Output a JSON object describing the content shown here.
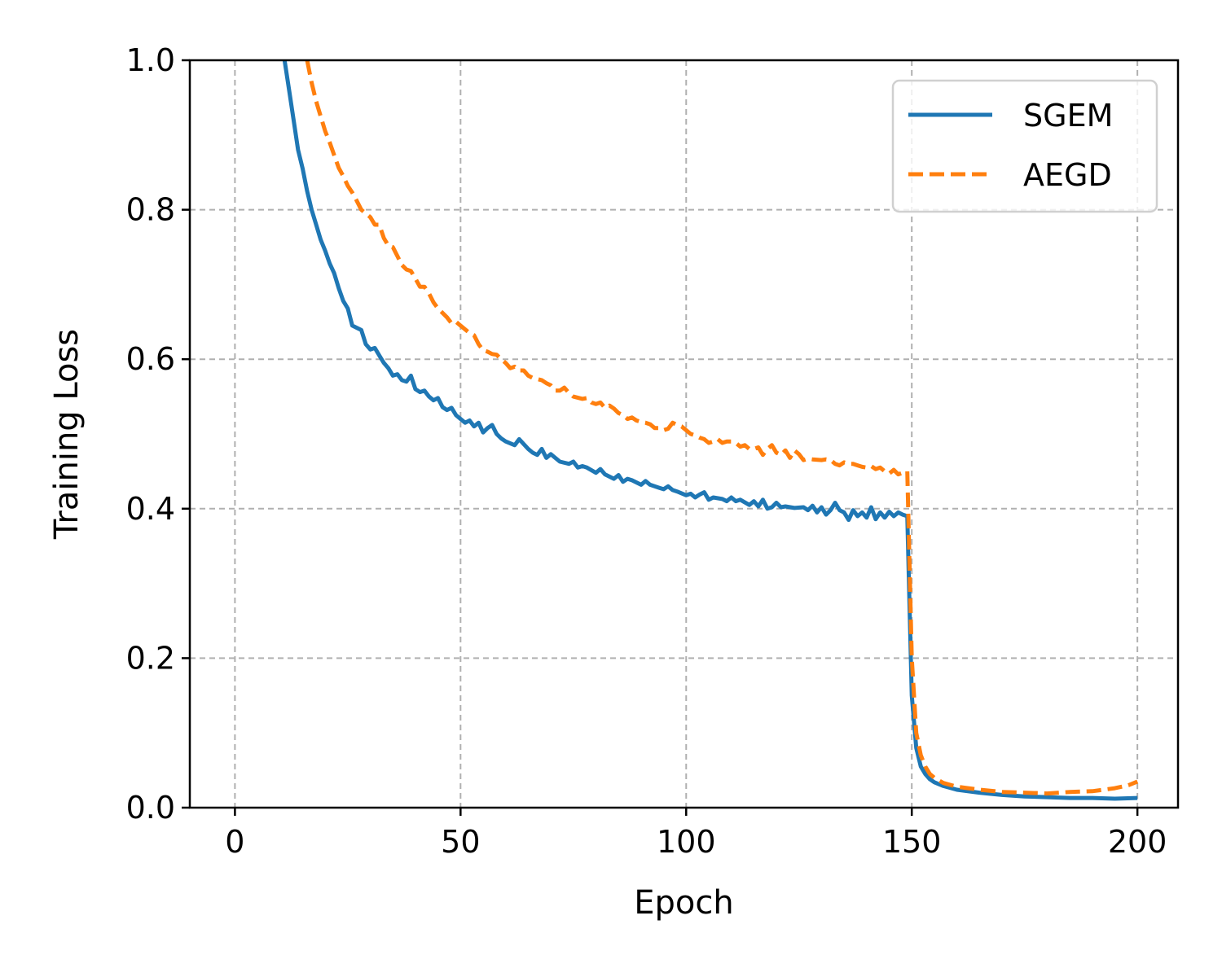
{
  "chart_data": {
    "type": "line",
    "xlabel": "Epoch",
    "ylabel": "Training Loss",
    "xlim": [
      -10,
      209
    ],
    "ylim": [
      0.0,
      1.0
    ],
    "xticks": [
      0,
      50,
      100,
      150,
      200
    ],
    "xtick_labels": [
      "0",
      "50",
      "100",
      "150",
      "200"
    ],
    "yticks": [
      0.0,
      0.2,
      0.4,
      0.6,
      0.8,
      1.0
    ],
    "ytick_labels": [
      "0.0",
      "0.2",
      "0.4",
      "0.6",
      "0.8",
      "1.0"
    ],
    "grid": true,
    "legend_position": "top-right",
    "series": [
      {
        "name": "SGEM",
        "color": "#1f77b4",
        "dash": "solid",
        "points": [
          [
            11,
            1.0
          ],
          [
            12,
            0.96
          ],
          [
            13,
            0.92
          ],
          [
            14,
            0.88
          ],
          [
            15,
            0.855
          ],
          [
            16,
            0.825
          ],
          [
            17,
            0.8
          ],
          [
            18,
            0.78
          ],
          [
            19,
            0.76
          ],
          [
            20,
            0.745
          ],
          [
            21,
            0.728
          ],
          [
            22,
            0.715
          ],
          [
            23,
            0.695
          ],
          [
            24,
            0.678
          ],
          [
            25,
            0.668
          ],
          [
            26,
            0.645
          ],
          [
            27,
            0.642
          ],
          [
            28,
            0.639
          ],
          [
            29,
            0.62
          ],
          [
            30,
            0.613
          ],
          [
            31,
            0.615
          ],
          [
            32,
            0.605
          ],
          [
            33,
            0.595
          ],
          [
            34,
            0.588
          ],
          [
            35,
            0.578
          ],
          [
            36,
            0.58
          ],
          [
            37,
            0.572
          ],
          [
            38,
            0.57
          ],
          [
            39,
            0.578
          ],
          [
            40,
            0.56
          ],
          [
            41,
            0.556
          ],
          [
            42,
            0.558
          ],
          [
            43,
            0.55
          ],
          [
            44,
            0.545
          ],
          [
            45,
            0.548
          ],
          [
            46,
            0.536
          ],
          [
            47,
            0.532
          ],
          [
            48,
            0.535
          ],
          [
            49,
            0.525
          ],
          [
            50,
            0.52
          ],
          [
            51,
            0.515
          ],
          [
            52,
            0.518
          ],
          [
            53,
            0.51
          ],
          [
            54,
            0.515
          ],
          [
            55,
            0.502
          ],
          [
            56,
            0.508
          ],
          [
            57,
            0.512
          ],
          [
            58,
            0.5
          ],
          [
            59,
            0.494
          ],
          [
            60,
            0.49
          ],
          [
            62,
            0.485
          ],
          [
            63,
            0.493
          ],
          [
            65,
            0.48
          ],
          [
            66,
            0.475
          ],
          [
            67,
            0.472
          ],
          [
            68,
            0.48
          ],
          [
            69,
            0.468
          ],
          [
            70,
            0.473
          ],
          [
            72,
            0.463
          ],
          [
            74,
            0.46
          ],
          [
            75,
            0.463
          ],
          [
            76,
            0.455
          ],
          [
            77,
            0.457
          ],
          [
            78,
            0.455
          ],
          [
            80,
            0.448
          ],
          [
            81,
            0.453
          ],
          [
            82,
            0.446
          ],
          [
            84,
            0.44
          ],
          [
            85,
            0.445
          ],
          [
            86,
            0.436
          ],
          [
            87,
            0.44
          ],
          [
            88,
            0.438
          ],
          [
            90,
            0.432
          ],
          [
            91,
            0.437
          ],
          [
            92,
            0.432
          ],
          [
            94,
            0.428
          ],
          [
            95,
            0.426
          ],
          [
            96,
            0.43
          ],
          [
            97,
            0.425
          ],
          [
            98,
            0.423
          ],
          [
            100,
            0.418
          ],
          [
            101,
            0.42
          ],
          [
            102,
            0.415
          ],
          [
            103,
            0.419
          ],
          [
            104,
            0.422
          ],
          [
            105,
            0.412
          ],
          [
            106,
            0.415
          ],
          [
            108,
            0.413
          ],
          [
            109,
            0.41
          ],
          [
            110,
            0.415
          ],
          [
            111,
            0.41
          ],
          [
            112,
            0.412
          ],
          [
            114,
            0.405
          ],
          [
            115,
            0.41
          ],
          [
            116,
            0.403
          ],
          [
            117,
            0.412
          ],
          [
            118,
            0.4
          ],
          [
            119,
            0.402
          ],
          [
            120,
            0.408
          ],
          [
            121,
            0.402
          ],
          [
            122,
            0.403
          ],
          [
            124,
            0.401
          ],
          [
            126,
            0.402
          ],
          [
            127,
            0.398
          ],
          [
            128,
            0.404
          ],
          [
            129,
            0.395
          ],
          [
            130,
            0.402
          ],
          [
            131,
            0.392
          ],
          [
            132,
            0.398
          ],
          [
            133,
            0.408
          ],
          [
            134,
            0.398
          ],
          [
            135,
            0.395
          ],
          [
            136,
            0.385
          ],
          [
            137,
            0.398
          ],
          [
            138,
            0.39
          ],
          [
            139,
            0.395
          ],
          [
            140,
            0.388
          ],
          [
            141,
            0.402
          ],
          [
            142,
            0.386
          ],
          [
            143,
            0.395
          ],
          [
            144,
            0.388
          ],
          [
            145,
            0.396
          ],
          [
            146,
            0.39
          ],
          [
            147,
            0.395
          ],
          [
            148,
            0.392
          ],
          [
            149,
            0.39
          ],
          [
            150,
            0.15
          ],
          [
            151,
            0.08
          ],
          [
            152,
            0.055
          ],
          [
            153,
            0.045
          ],
          [
            154,
            0.038
          ],
          [
            155,
            0.034
          ],
          [
            157,
            0.029
          ],
          [
            160,
            0.024
          ],
          [
            165,
            0.02
          ],
          [
            170,
            0.017
          ],
          [
            175,
            0.015
          ],
          [
            180,
            0.014
          ],
          [
            185,
            0.013
          ],
          [
            190,
            0.013
          ],
          [
            195,
            0.012
          ],
          [
            200,
            0.013
          ]
        ]
      },
      {
        "name": "AEGD",
        "color": "#ff7f0e",
        "dash": "dashed",
        "points": [
          [
            16,
            1.0
          ],
          [
            17,
            0.97
          ],
          [
            18,
            0.945
          ],
          [
            19,
            0.925
          ],
          [
            20,
            0.905
          ],
          [
            21,
            0.89
          ],
          [
            22,
            0.873
          ],
          [
            23,
            0.856
          ],
          [
            24,
            0.845
          ],
          [
            25,
            0.832
          ],
          [
            26,
            0.823
          ],
          [
            27,
            0.812
          ],
          [
            28,
            0.8
          ],
          [
            29,
            0.795
          ],
          [
            30,
            0.79
          ],
          [
            31,
            0.78
          ],
          [
            32,
            0.78
          ],
          [
            33,
            0.762
          ],
          [
            34,
            0.752
          ],
          [
            35,
            0.75
          ],
          [
            36,
            0.738
          ],
          [
            37,
            0.726
          ],
          [
            38,
            0.72
          ],
          [
            39,
            0.718
          ],
          [
            40,
            0.708
          ],
          [
            41,
            0.697
          ],
          [
            42,
            0.697
          ],
          [
            43,
            0.688
          ],
          [
            44,
            0.676
          ],
          [
            45,
            0.668
          ],
          [
            46,
            0.662
          ],
          [
            47,
            0.656
          ],
          [
            48,
            0.648
          ],
          [
            49,
            0.65
          ],
          [
            50,
            0.645
          ],
          [
            52,
            0.635
          ],
          [
            53,
            0.632
          ],
          [
            54,
            0.62
          ],
          [
            55,
            0.612
          ],
          [
            56,
            0.61
          ],
          [
            57,
            0.607
          ],
          [
            58,
            0.606
          ],
          [
            59,
            0.6
          ],
          [
            60,
            0.595
          ],
          [
            61,
            0.588
          ],
          [
            62,
            0.59
          ],
          [
            63,
            0.585
          ],
          [
            64,
            0.585
          ],
          [
            65,
            0.578
          ],
          [
            66,
            0.575
          ],
          [
            68,
            0.572
          ],
          [
            69,
            0.568
          ],
          [
            70,
            0.565
          ],
          [
            71,
            0.558
          ],
          [
            72,
            0.558
          ],
          [
            73,
            0.562
          ],
          [
            74,
            0.555
          ],
          [
            75,
            0.55
          ],
          [
            77,
            0.547
          ],
          [
            78,
            0.548
          ],
          [
            79,
            0.542
          ],
          [
            80,
            0.54
          ],
          [
            81,
            0.542
          ],
          [
            82,
            0.535
          ],
          [
            83,
            0.538
          ],
          [
            84,
            0.534
          ],
          [
            85,
            0.528
          ],
          [
            86,
            0.525
          ],
          [
            87,
            0.52
          ],
          [
            88,
            0.522
          ],
          [
            89,
            0.518
          ],
          [
            90,
            0.516
          ],
          [
            91,
            0.515
          ],
          [
            92,
            0.513
          ],
          [
            93,
            0.508
          ],
          [
            94,
            0.508
          ],
          [
            95,
            0.505
          ],
          [
            96,
            0.507
          ],
          [
            97,
            0.515
          ],
          [
            98,
            0.512
          ],
          [
            99,
            0.51
          ],
          [
            100,
            0.505
          ],
          [
            101,
            0.5
          ],
          [
            102,
            0.498
          ],
          [
            103,
            0.495
          ],
          [
            104,
            0.493
          ],
          [
            105,
            0.488
          ],
          [
            106,
            0.49
          ],
          [
            107,
            0.493
          ],
          [
            108,
            0.488
          ],
          [
            109,
            0.49
          ],
          [
            110,
            0.49
          ],
          [
            111,
            0.488
          ],
          [
            112,
            0.483
          ],
          [
            113,
            0.485
          ],
          [
            114,
            0.48
          ],
          [
            115,
            0.48
          ],
          [
            116,
            0.482
          ],
          [
            117,
            0.472
          ],
          [
            118,
            0.48
          ],
          [
            119,
            0.485
          ],
          [
            120,
            0.475
          ],
          [
            121,
            0.472
          ],
          [
            122,
            0.478
          ],
          [
            123,
            0.468
          ],
          [
            124,
            0.478
          ],
          [
            125,
            0.473
          ],
          [
            126,
            0.465
          ],
          [
            127,
            0.467
          ],
          [
            128,
            0.466
          ],
          [
            130,
            0.465
          ],
          [
            131,
            0.466
          ],
          [
            132,
            0.465
          ],
          [
            133,
            0.46
          ],
          [
            134,
            0.458
          ],
          [
            135,
            0.462
          ],
          [
            136,
            0.46
          ],
          [
            137,
            0.46
          ],
          [
            138,
            0.458
          ],
          [
            139,
            0.456
          ],
          [
            140,
            0.455
          ],
          [
            141,
            0.457
          ],
          [
            142,
            0.453
          ],
          [
            143,
            0.455
          ],
          [
            144,
            0.45
          ],
          [
            145,
            0.447
          ],
          [
            146,
            0.452
          ],
          [
            147,
            0.446
          ],
          [
            148,
            0.448
          ],
          [
            149,
            0.45
          ],
          [
            150,
            0.2
          ],
          [
            151,
            0.1
          ],
          [
            152,
            0.07
          ],
          [
            153,
            0.055
          ],
          [
            154,
            0.045
          ],
          [
            155,
            0.04
          ],
          [
            157,
            0.033
          ],
          [
            160,
            0.028
          ],
          [
            165,
            0.024
          ],
          [
            170,
            0.021
          ],
          [
            175,
            0.02
          ],
          [
            180,
            0.019
          ],
          [
            185,
            0.021
          ],
          [
            190,
            0.022
          ],
          [
            195,
            0.026
          ],
          [
            198,
            0.03
          ],
          [
            200,
            0.035
          ]
        ]
      }
    ]
  }
}
